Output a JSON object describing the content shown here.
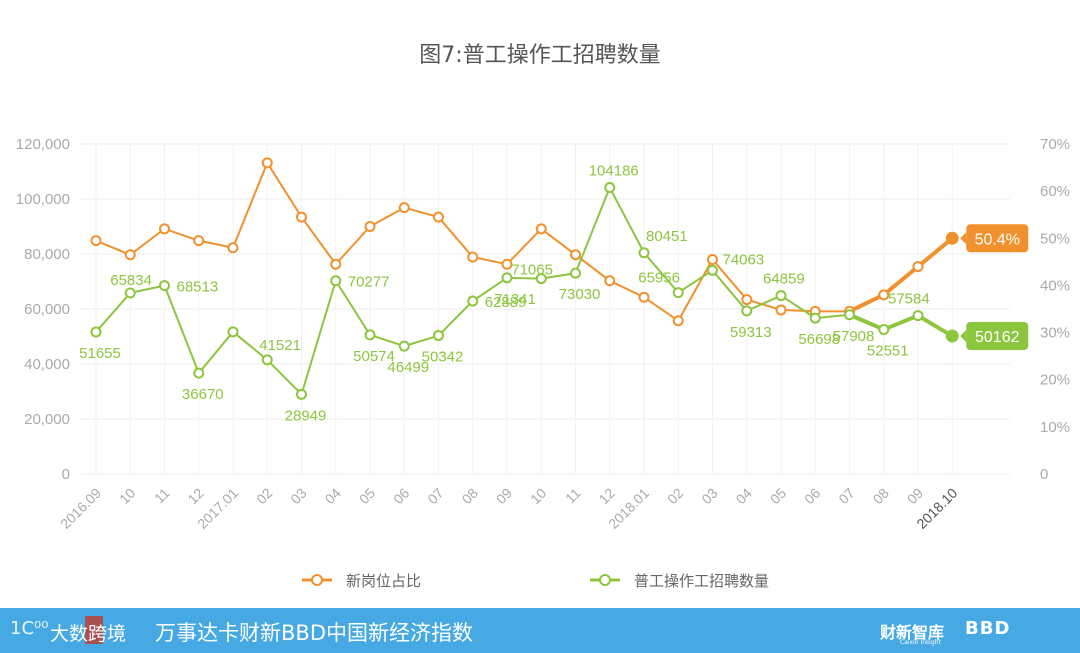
{
  "title": "图7:普工操作工招聘数量",
  "chart_data": {
    "type": "line",
    "title": "图7:普工操作工招聘数量",
    "categories": [
      "2016.09",
      "10",
      "11",
      "12",
      "2017.01",
      "02",
      "03",
      "04",
      "05",
      "06",
      "07",
      "08",
      "09",
      "10",
      "11",
      "12",
      "2018.01",
      "02",
      "03",
      "04",
      "05",
      "06",
      "07",
      "08",
      "09",
      "2018.10"
    ],
    "y_left": {
      "ylim": [
        0,
        120000
      ],
      "ticks": [
        "0",
        "20,000",
        "40,000",
        "60,000",
        "80,000",
        "100,000",
        "120,000"
      ]
    },
    "y_right": {
      "ylim": [
        0,
        70
      ],
      "ticks": [
        "0",
        "10%",
        "20%",
        "30%",
        "40%",
        "50%",
        "60%",
        "70%"
      ]
    },
    "series": [
      {
        "name": "新岗位占比",
        "axis": "right",
        "color": "#f0912e",
        "values": [
          49.5,
          46.5,
          52,
          49.5,
          48,
          66,
          54.5,
          44.5,
          52.5,
          56.5,
          54.5,
          46,
          44.5,
          52,
          46.5,
          41,
          37.5,
          32.5,
          45.5,
          37,
          34.8,
          34.5,
          34.5,
          38,
          44,
          50
        ],
        "callout": "50.4%"
      },
      {
        "name": "普工操作工招聘数量",
        "axis": "left",
        "color": "#8cc63f",
        "values": [
          51655,
          65834,
          68513,
          36670,
          51700,
          41521,
          28949,
          70277,
          50574,
          46499,
          50342,
          62889,
          71341,
          71065,
          73030,
          104186,
          80451,
          65956,
          74063,
          59313,
          64859,
          56698,
          57908,
          52551,
          57584,
          50162
        ],
        "labels": [
          "51655",
          "65834",
          "68513",
          "36670",
          "",
          "41521",
          "28949",
          "70277",
          "50574",
          "46499",
          "50342",
          "62889",
          "71341",
          "71065",
          "73030",
          "104186",
          "80451",
          "65956",
          "74063",
          "59313",
          "64859",
          "56698",
          "57908",
          "52551",
          "57584",
          "50162"
        ],
        "callout": "50162"
      }
    ],
    "legend": "bottom",
    "grid": true
  },
  "footer": {
    "logo_mark": "1C⁰⁰",
    "logo_text": "大数跨境",
    "main_text": "万事达卡财新BBD中国新经济指数",
    "brand1": "财新智库",
    "brand1_sub": "Caixin Insight",
    "brand2": "BBD"
  }
}
